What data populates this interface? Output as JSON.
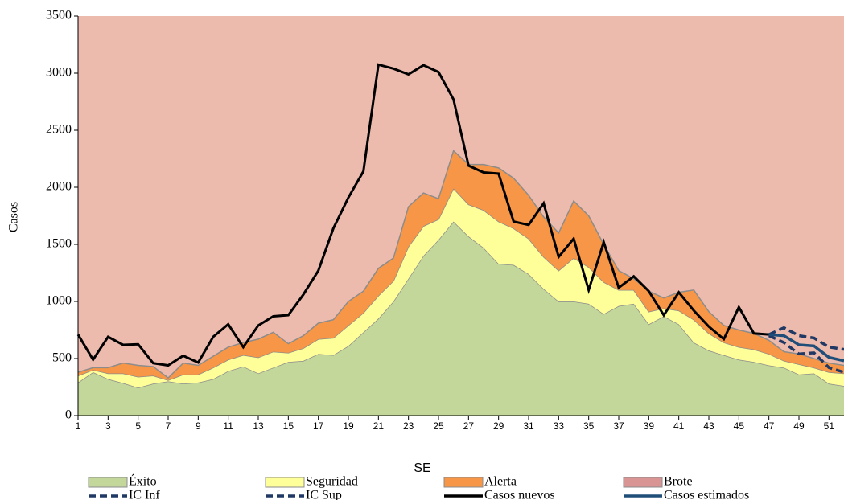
{
  "chart_data": {
    "type": "line",
    "x_label": "SE",
    "y_label": "Casos",
    "x": [
      1,
      2,
      3,
      4,
      5,
      6,
      7,
      8,
      9,
      10,
      11,
      12,
      13,
      14,
      15,
      16,
      17,
      18,
      19,
      20,
      21,
      22,
      23,
      24,
      25,
      26,
      27,
      28,
      29,
      30,
      31,
      32,
      33,
      34,
      35,
      36,
      37,
      38,
      39,
      40,
      41,
      42,
      43,
      44,
      45,
      46,
      47,
      48,
      49,
      50,
      51,
      52
    ],
    "xlim": [
      1,
      52
    ],
    "xticks": [
      1,
      3,
      5,
      7,
      9,
      11,
      13,
      15,
      17,
      19,
      21,
      23,
      25,
      27,
      29,
      31,
      33,
      35,
      37,
      39,
      41,
      43,
      45,
      47,
      49,
      51
    ],
    "ylim": [
      0,
      3500
    ],
    "yticks": [
      0,
      500,
      1000,
      1500,
      2000,
      2500,
      3000,
      3500
    ],
    "series": [
      {
        "name": "Éxito",
        "color": "#c4d79b",
        "kind": "area",
        "values": [
          290,
          380,
          320,
          285,
          245,
          280,
          300,
          280,
          290,
          320,
          390,
          430,
          370,
          420,
          470,
          480,
          540,
          530,
          610,
          730,
          850,
          1000,
          1200,
          1400,
          1540,
          1700,
          1570,
          1470,
          1330,
          1320,
          1240,
          1110,
          1000,
          1000,
          980,
          890,
          960,
          980,
          800,
          870,
          800,
          640,
          570,
          530,
          490,
          470,
          440,
          420,
          360,
          370,
          280,
          260
        ]
      },
      {
        "name": "Seguridad",
        "color": "#ffff99",
        "kind": "area",
        "values": [
          60,
          20,
          50,
          85,
          95,
          70,
          10,
          80,
          70,
          100,
          100,
          100,
          140,
          140,
          80,
          110,
          130,
          150,
          180,
          170,
          200,
          180,
          280,
          260,
          180,
          290,
          280,
          330,
          370,
          320,
          310,
          280,
          270,
          380,
          320,
          280,
          140,
          120,
          110,
          70,
          120,
          200,
          150,
          110,
          110,
          110,
          100,
          60,
          90,
          50,
          100,
          110
        ]
      },
      {
        "name": "Alerta",
        "color": "#f79646",
        "kind": "area",
        "values": [
          30,
          20,
          50,
          90,
          100,
          80,
          20,
          100,
          80,
          100,
          110,
          110,
          160,
          170,
          80,
          110,
          140,
          160,
          210,
          190,
          240,
          200,
          350,
          290,
          180,
          330,
          350,
          400,
          470,
          440,
          380,
          350,
          330,
          500,
          450,
          330,
          170,
          100,
          180,
          90,
          160,
          260,
          190,
          150,
          150,
          140,
          120,
          80,
          90,
          80,
          80,
          70
        ]
      },
      {
        "name": "Brote",
        "color": "#edbbae",
        "swatch": "#d99594",
        "kind": "fill"
      },
      {
        "name": "IC Inf",
        "color": "#1f3864",
        "kind": "dash",
        "values": [
          null,
          null,
          null,
          null,
          null,
          null,
          null,
          null,
          null,
          null,
          null,
          null,
          null,
          null,
          null,
          null,
          null,
          null,
          null,
          null,
          null,
          null,
          null,
          null,
          null,
          null,
          null,
          null,
          null,
          null,
          null,
          null,
          null,
          null,
          null,
          null,
          null,
          null,
          null,
          null,
          null,
          null,
          null,
          null,
          null,
          null,
          700,
          640,
          540,
          550,
          420,
          380
        ]
      },
      {
        "name": "IC Sup",
        "color": "#1f3864",
        "kind": "dash",
        "values": [
          null,
          null,
          null,
          null,
          null,
          null,
          null,
          null,
          null,
          null,
          null,
          null,
          null,
          null,
          null,
          null,
          null,
          null,
          null,
          null,
          null,
          null,
          null,
          null,
          null,
          null,
          null,
          null,
          null,
          null,
          null,
          null,
          null,
          null,
          null,
          null,
          null,
          null,
          null,
          null,
          null,
          null,
          null,
          null,
          null,
          null,
          710,
          770,
          700,
          680,
          600,
          580
        ]
      },
      {
        "name": "Casos nuevos",
        "color": "#000000",
        "kind": "line",
        "values": [
          710,
          490,
          690,
          620,
          625,
          460,
          440,
          525,
          465,
          690,
          800,
          600,
          790,
          870,
          880,
          1060,
          1270,
          1640,
          1910,
          2140,
          3075,
          3040,
          2990,
          3070,
          3010,
          2770,
          2190,
          2130,
          2120,
          1700,
          1670,
          1860,
          1390,
          1550,
          1100,
          1520,
          1120,
          1220,
          1090,
          880,
          1080,
          920,
          780,
          670,
          950,
          720,
          710,
          null,
          null,
          null,
          null,
          null
        ]
      },
      {
        "name": "Casos estimados",
        "color": "#1f4e79",
        "kind": "solid",
        "values": [
          null,
          null,
          null,
          null,
          null,
          null,
          null,
          null,
          null,
          null,
          null,
          null,
          null,
          null,
          null,
          null,
          null,
          null,
          null,
          null,
          null,
          null,
          null,
          null,
          null,
          null,
          null,
          null,
          null,
          null,
          null,
          null,
          null,
          null,
          null,
          null,
          null,
          null,
          null,
          null,
          null,
          null,
          null,
          null,
          null,
          null,
          710,
          700,
          620,
          610,
          510,
          480
        ]
      }
    ]
  }
}
